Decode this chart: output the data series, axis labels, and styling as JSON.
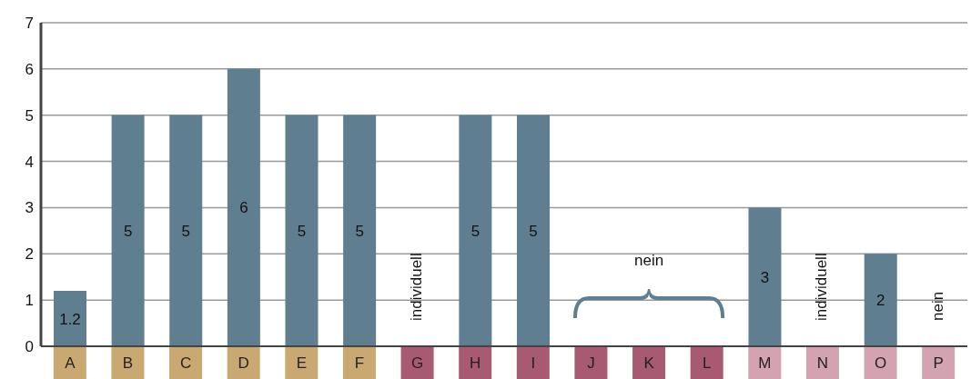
{
  "chart_data": {
    "type": "bar",
    "categories": [
      "A",
      "B",
      "C",
      "D",
      "E",
      "F",
      "G",
      "H",
      "I",
      "J",
      "K",
      "L",
      "M",
      "N",
      "O",
      "P"
    ],
    "values": [
      1.2,
      5,
      5,
      6,
      5,
      5,
      null,
      5,
      5,
      null,
      null,
      null,
      3,
      null,
      2,
      null
    ],
    "color": "#5f7f91",
    "ylim": [
      0,
      7
    ],
    "yticks": [
      0,
      1,
      2,
      3,
      4,
      5,
      6,
      7
    ],
    "grid": "y",
    "data_labels": true,
    "annotations": [
      "individuell",
      "nein",
      "individuell",
      "nein"
    ]
  }
}
